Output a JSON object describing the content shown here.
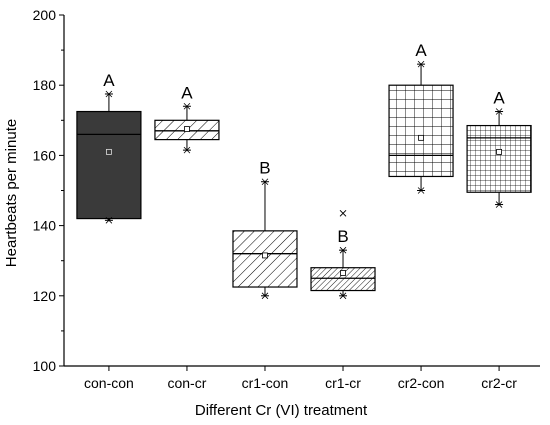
{
  "chart_data": {
    "type": "box",
    "xlabel": "Different Cr (VI) treatment",
    "ylabel": "Heartbeats per minute",
    "ylim": [
      100,
      200
    ],
    "yticks": [
      100,
      120,
      140,
      160,
      180,
      200
    ],
    "categories": [
      "con-con",
      "con-cr",
      "cr1-con",
      "cr1-cr",
      "cr2-con",
      "cr2-cr"
    ],
    "boxes": [
      {
        "category": "con-con",
        "min": 141.5,
        "q1": 142,
        "median": 166,
        "q3": 172.5,
        "max": 177.5,
        "mean": 161,
        "outliers": [],
        "fill": "solid-dark",
        "sig": "A"
      },
      {
        "category": "con-cr",
        "min": 161.5,
        "q1": 164.5,
        "median": 167,
        "q3": 170,
        "max": 174,
        "mean": 167.5,
        "outliers": [],
        "fill": "diagonal",
        "sig": "A"
      },
      {
        "category": "cr1-con",
        "min": 120,
        "q1": 122.5,
        "median": 132,
        "q3": 138.5,
        "max": 152.5,
        "mean": 131.5,
        "outliers": [],
        "fill": "diagonal-dense",
        "sig": "B"
      },
      {
        "category": "cr1-cr",
        "min": 120,
        "q1": 121.5,
        "median": 125,
        "q3": 128,
        "max": 133,
        "mean": 126.5,
        "outliers": [
          143.5
        ],
        "fill": "diagonal-fine",
        "sig": "B"
      },
      {
        "category": "cr2-con",
        "min": 150,
        "q1": 154,
        "median": 160,
        "q3": 180,
        "max": 186,
        "mean": 165,
        "outliers": [],
        "fill": "grid-large",
        "sig": "A"
      },
      {
        "category": "cr2-cr",
        "min": 146,
        "q1": 149.5,
        "median": 165,
        "q3": 168.5,
        "max": 172.5,
        "mean": 161,
        "outliers": [],
        "fill": "grid-small",
        "sig": "A"
      }
    ],
    "colors": {
      "dark_fill": "#3a3a3a",
      "line": "#000000"
    }
  }
}
